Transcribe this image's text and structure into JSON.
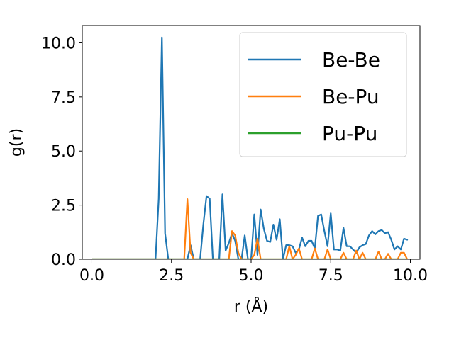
{
  "chart_data": {
    "type": "line",
    "xlabel": "r (Å)",
    "ylabel": "g(r)",
    "xlim": [
      -0.3,
      10.3
    ],
    "ylim": [
      0,
      10.8
    ],
    "xticks": [
      0,
      2.5,
      5,
      7.5,
      10
    ],
    "xtick_labels": [
      "0.0",
      "2.5",
      "5.0",
      "7.5",
      "10.0"
    ],
    "yticks": [
      0,
      2.5,
      5,
      7.5,
      10
    ],
    "ytick_labels": [
      "0.0",
      "2.5",
      "5.0",
      "7.5",
      "10.0"
    ],
    "grid": false,
    "legend_position": "top-right",
    "x": [
      0.0,
      0.1,
      0.2,
      0.3,
      0.4,
      0.5,
      0.6,
      0.7,
      0.8,
      0.9,
      1.0,
      1.1,
      1.2,
      1.3,
      1.4,
      1.5,
      1.6,
      1.7,
      1.8,
      1.9,
      2.0,
      2.1,
      2.2,
      2.3,
      2.4,
      2.5,
      2.6,
      2.7,
      2.8,
      2.9,
      3.0,
      3.1,
      3.2,
      3.3,
      3.4,
      3.5,
      3.6,
      3.7,
      3.8,
      3.9,
      4.0,
      4.1,
      4.2,
      4.3,
      4.4,
      4.5,
      4.6,
      4.7,
      4.8,
      4.9,
      5.0,
      5.1,
      5.2,
      5.3,
      5.4,
      5.5,
      5.6,
      5.7,
      5.8,
      5.9,
      6.0,
      6.1,
      6.2,
      6.3,
      6.4,
      6.5,
      6.6,
      6.7,
      6.8,
      6.9,
      7.0,
      7.1,
      7.2,
      7.3,
      7.4,
      7.5,
      7.6,
      7.7,
      7.8,
      7.9,
      8.0,
      8.1,
      8.2,
      8.3,
      8.4,
      8.5,
      8.6,
      8.7,
      8.8,
      8.9,
      9.0,
      9.1,
      9.2,
      9.3,
      9.4,
      9.5,
      9.6,
      9.7,
      9.8,
      9.9
    ],
    "series": [
      {
        "name": "Be-Be",
        "color": "#1f77b4",
        "values": [
          0,
          0,
          0,
          0,
          0,
          0,
          0,
          0,
          0,
          0,
          0,
          0,
          0,
          0,
          0,
          0,
          0,
          0,
          0,
          0,
          0,
          2.8,
          10.25,
          1.2,
          0,
          0,
          0,
          0,
          0,
          0,
          0,
          0.65,
          0,
          0,
          0,
          1.6,
          2.92,
          2.8,
          0,
          0,
          0,
          3.0,
          0.4,
          0.75,
          1.2,
          0.85,
          0,
          0,
          1.1,
          0,
          0,
          2.07,
          0.2,
          2.3,
          1.4,
          0.85,
          0.8,
          1.6,
          0.9,
          1.85,
          0,
          0.65,
          0.65,
          0.6,
          0.3,
          0.45,
          1.0,
          0.6,
          0.85,
          0.85,
          0.5,
          2.0,
          2.07,
          1.3,
          0.6,
          2.12,
          0.45,
          0.45,
          0.4,
          1.45,
          0.6,
          0.6,
          0.45,
          0.3,
          0.55,
          0.65,
          0.7,
          1.1,
          1.3,
          1.15,
          1.3,
          1.35,
          1.2,
          1.25,
          0.9,
          0.45,
          0.6,
          0.45,
          0.95,
          0.9
        ]
      },
      {
        "name": "Be-Pu",
        "color": "#ff7f0e",
        "values": [
          0,
          0,
          0,
          0,
          0,
          0,
          0,
          0,
          0,
          0,
          0,
          0,
          0,
          0,
          0,
          0,
          0,
          0,
          0,
          0,
          0,
          0,
          0,
          0,
          0,
          0,
          0,
          0,
          0,
          0,
          2.78,
          0.3,
          0,
          0,
          0,
          0,
          0,
          0,
          0,
          0,
          0,
          0,
          0,
          0,
          1.3,
          1.1,
          0.3,
          0,
          0,
          0,
          0,
          0.2,
          0.95,
          0,
          0,
          0,
          0,
          0,
          0,
          0,
          0,
          0,
          0.6,
          0,
          0.2,
          0.5,
          0,
          0,
          0,
          0,
          0.5,
          0,
          0,
          0,
          0.45,
          0,
          0,
          0,
          0,
          0.3,
          0,
          0,
          0,
          0.4,
          0,
          0.3,
          0,
          0,
          0,
          0,
          0.35,
          0,
          0,
          0.25,
          0,
          0,
          0,
          0.3,
          0.3,
          0
        ]
      },
      {
        "name": "Pu-Pu",
        "color": "#2ca02c",
        "values": [
          0,
          0,
          0,
          0,
          0,
          0,
          0,
          0,
          0,
          0,
          0,
          0,
          0,
          0,
          0,
          0,
          0,
          0,
          0,
          0,
          0,
          0,
          0,
          0,
          0,
          0,
          0,
          0,
          0,
          0,
          0,
          0,
          0,
          0,
          0,
          0,
          0,
          0,
          0,
          0,
          0,
          0,
          0,
          0,
          0,
          0,
          0,
          0,
          0,
          0,
          0,
          0,
          0,
          0,
          0,
          0,
          0,
          0,
          0,
          0,
          0,
          0,
          0,
          0,
          0,
          0,
          0,
          0,
          0,
          0,
          0,
          0,
          0,
          0,
          0,
          0,
          0,
          0,
          0,
          0,
          0,
          0,
          0,
          0,
          0,
          0,
          0,
          0,
          0,
          0,
          0,
          0,
          0,
          0,
          0,
          0,
          0,
          0,
          0,
          0
        ]
      }
    ]
  }
}
